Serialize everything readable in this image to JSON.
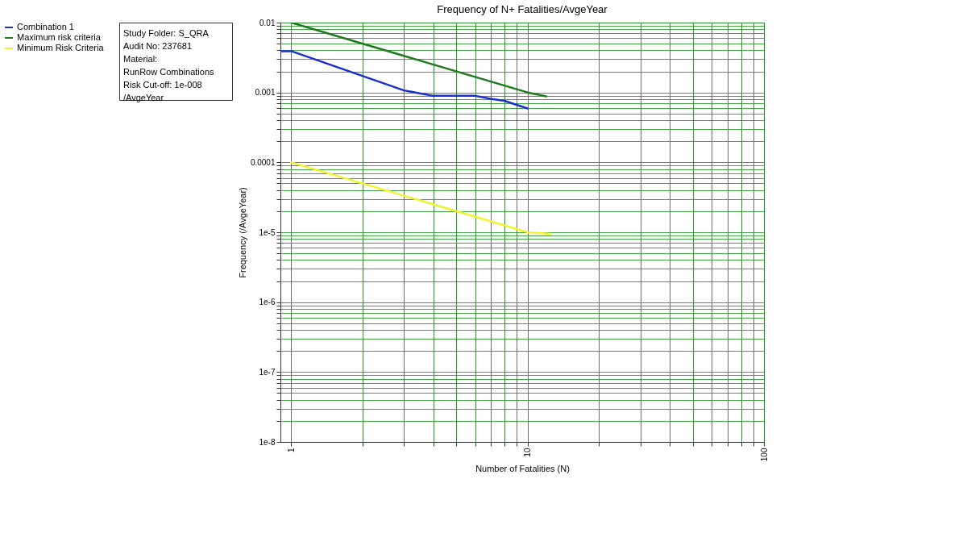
{
  "chart_data": {
    "type": "line",
    "title": "Frequency of N+ Fatalities/AvgeYear",
    "xlabel": "Number of Fatalities (N)",
    "ylabel": "Frequency (/AvgeYear)",
    "annotations": [
      "Study Folder: S_QRA",
      "Audit No: 237681",
      "Material:",
      "RunRow Combinations",
      "Risk Cut-off: 1e-008",
      "/AvgeYear"
    ],
    "series": [
      {
        "name": "Combination 1",
        "color": "#1a2fd0",
        "x": [
          0.9,
          1,
          3,
          3.95,
          5.95,
          6.97,
          7.98,
          10
        ],
        "values": [
          0.0039,
          0.0039,
          0.00107,
          0.0009,
          0.0009,
          0.00081,
          0.00076,
          0.00059
        ]
      },
      {
        "name": "Maximum risk criteria",
        "color": "#1f7a1f",
        "x": [
          1,
          10,
          12
        ],
        "values": [
          0.01,
          0.001,
          0.00088
        ]
      },
      {
        "name": "Minimum Risk Criteria",
        "color": "#f2f230",
        "x": [
          1,
          10,
          12.5
        ],
        "values": [
          0.0001,
          1e-05,
          9.5e-06
        ]
      }
    ],
    "log": "xy",
    "xlim": [
      0.9,
      100
    ],
    "ylim": [
      1e-08,
      0.01
    ],
    "xticks": [
      1,
      {
        "value": 2,
        "label": null
      },
      {
        "value": 3,
        "label": null
      },
      {
        "value": 4,
        "label": null
      },
      {
        "value": 5,
        "label": null
      },
      {
        "value": 6,
        "label": null
      },
      {
        "value": 7,
        "label": null
      },
      {
        "value": 8,
        "label": null
      },
      {
        "value": 9,
        "label": null
      },
      10,
      {
        "value": 20,
        "label": null
      },
      {
        "value": 30,
        "label": null
      },
      {
        "value": 40,
        "label": null
      },
      {
        "value": 50,
        "label": null
      },
      {
        "value": 60,
        "label": null
      },
      {
        "value": 70,
        "label": null
      },
      {
        "value": 80,
        "label": null
      },
      {
        "value": 90,
        "label": null
      },
      100
    ],
    "yticks": [
      {
        "value": 1e-08,
        "label": "1e-8"
      },
      {
        "value": 2e-08,
        "label": null
      },
      {
        "value": 3e-08,
        "label": null
      },
      {
        "value": 4e-08,
        "label": null
      },
      {
        "value": 5e-08,
        "label": null
      },
      {
        "value": 6e-08,
        "label": null
      },
      {
        "value": 7e-08,
        "label": null
      },
      {
        "value": 8e-08,
        "label": null
      },
      {
        "value": 9e-08,
        "label": null
      },
      {
        "value": 1e-07,
        "label": "1e-7"
      },
      {
        "value": 2e-07,
        "label": null
      },
      {
        "value": 3e-07,
        "label": null
      },
      {
        "value": 4e-07,
        "label": null
      },
      {
        "value": 5e-07,
        "label": null
      },
      {
        "value": 6e-07,
        "label": null
      },
      {
        "value": 7e-07,
        "label": null
      },
      {
        "value": 8e-07,
        "label": null
      },
      {
        "value": 9e-07,
        "label": null
      },
      {
        "value": 1e-06,
        "label": "1e-6"
      },
      {
        "value": 2e-06,
        "label": null
      },
      {
        "value": 3e-06,
        "label": null
      },
      {
        "value": 4e-06,
        "label": null
      },
      {
        "value": 5e-06,
        "label": null
      },
      {
        "value": 6e-06,
        "label": null
      },
      {
        "value": 7e-06,
        "label": null
      },
      {
        "value": 8e-06,
        "label": null
      },
      {
        "value": 9e-06,
        "label": null
      },
      {
        "value": 1e-05,
        "label": "1e-5"
      },
      {
        "value": 2e-05,
        "label": null
      },
      {
        "value": 3e-05,
        "label": null
      },
      {
        "value": 4e-05,
        "label": null
      },
      {
        "value": 5e-05,
        "label": null
      },
      {
        "value": 6e-05,
        "label": null
      },
      {
        "value": 7e-05,
        "label": null
      },
      {
        "value": 8e-05,
        "label": null
      },
      {
        "value": 9e-05,
        "label": null
      },
      0.0001,
      {
        "value": 0.0002,
        "label": null
      },
      {
        "value": 0.0003,
        "label": null
      },
      {
        "value": 0.0004,
        "label": null
      },
      {
        "value": 0.0005,
        "label": null
      },
      {
        "value": 0.0006,
        "label": null
      },
      {
        "value": 0.0007,
        "label": null
      },
      {
        "value": 0.0008,
        "label": null
      },
      {
        "value": 0.0009,
        "label": null
      },
      0.001,
      {
        "value": 0.002,
        "label": null
      },
      {
        "value": 0.003,
        "label": null
      },
      {
        "value": 0.004,
        "label": null
      },
      {
        "value": 0.005,
        "label": null
      },
      {
        "value": 0.006,
        "label": null
      },
      {
        "value": 0.007,
        "label": null
      },
      {
        "value": 0.008,
        "label": null
      },
      {
        "value": 0.009,
        "label": null
      },
      0.01
    ],
    "grid": true,
    "legend": "left",
    "marker": "none",
    "line_style": "solid"
  }
}
